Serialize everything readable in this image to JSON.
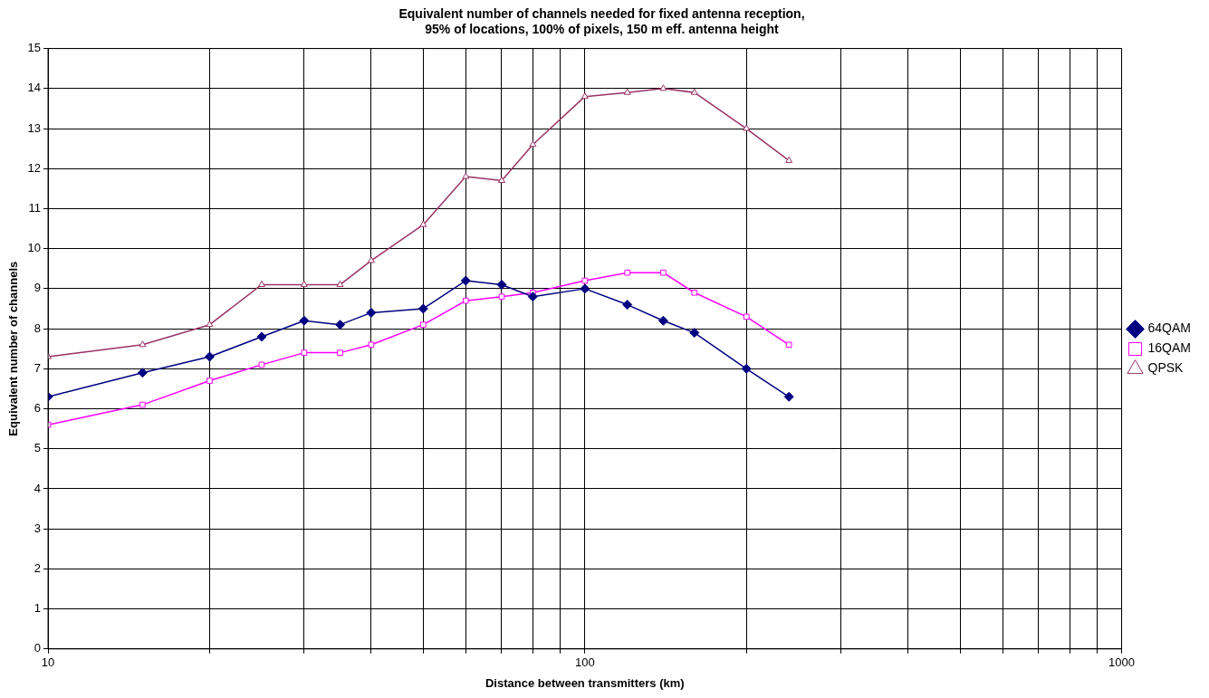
{
  "chart_data": {
    "type": "line",
    "title": "Equivalent number of channels needed for fixed antenna reception,\n95% of locations, 100% of pixels, 150 m eff. antenna height",
    "xlabel": "Distance between transmitters (km)",
    "ylabel": "Equivalent number of channels",
    "log": "x",
    "x": [
      10,
      15,
      20,
      25,
      30,
      35,
      40,
      50,
      60,
      70,
      80,
      100,
      120,
      140,
      160,
      200,
      240
    ],
    "series": [
      {
        "name": "64QAM",
        "color": "#000080",
        "marker": "diamond",
        "values": [
          6.3,
          6.9,
          7.3,
          7.8,
          8.2,
          8.1,
          8.4,
          8.5,
          9.2,
          9.1,
          8.8,
          9.0,
          8.6,
          8.2,
          7.9,
          7.0,
          6.3
        ]
      },
      {
        "name": "16QAM",
        "color": "#ff00ff",
        "marker": "square",
        "values": [
          5.6,
          6.1,
          6.7,
          7.1,
          7.4,
          7.4,
          7.6,
          8.1,
          8.7,
          8.8,
          8.9,
          9.2,
          9.4,
          9.4,
          8.9,
          8.3,
          7.6
        ]
      },
      {
        "name": "QPSK",
        "color": "#993366",
        "marker": "triangle",
        "values": [
          7.3,
          7.6,
          8.1,
          9.1,
          9.1,
          9.1,
          9.7,
          10.6,
          11.8,
          11.7,
          12.6,
          13.8,
          13.9,
          14.0,
          13.9,
          13.0,
          12.2
        ]
      }
    ],
    "xlim": [
      10,
      1000
    ],
    "xticks": [
      10,
      {
        "value": 20,
        "label": null
      },
      {
        "value": 30,
        "label": null
      },
      {
        "value": 40,
        "label": null
      },
      {
        "value": 50,
        "label": null
      },
      {
        "value": 60,
        "label": null
      },
      {
        "value": 70,
        "label": null
      },
      {
        "value": 80,
        "label": null
      },
      {
        "value": 90,
        "label": null
      },
      100,
      {
        "value": 200,
        "label": null
      },
      {
        "value": 300,
        "label": null
      },
      {
        "value": 400,
        "label": null
      },
      {
        "value": 500,
        "label": null
      },
      {
        "value": 600,
        "label": null
      },
      {
        "value": 700,
        "label": null
      },
      {
        "value": 800,
        "label": null
      },
      {
        "value": 900,
        "label": null
      },
      1000
    ],
    "ylim": [
      0,
      15
    ],
    "yticks": [
      0,
      1,
      2,
      3,
      4,
      5,
      6,
      7,
      8,
      9,
      10,
      11,
      12,
      13,
      14,
      15
    ],
    "grid": true,
    "legend": "right",
    "line_style": "solid"
  }
}
